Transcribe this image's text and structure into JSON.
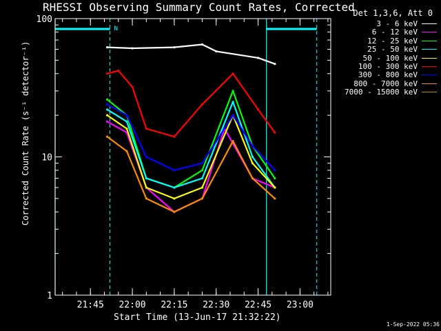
{
  "window": {
    "title": "RHESSI Observing Summary Count Rates, Corrected",
    "footer": "1-Sep-2022 05:36"
  },
  "chart_data": {
    "type": "line",
    "title": "RHESSI Observing Summary Count Rates, Corrected",
    "xlabel": "Start Time (13-Jun-17 21:32:22)",
    "ylabel": "Corrected Count Rate (s⁻¹ detector⁻¹)",
    "y_scale": "log",
    "ylim": [
      1,
      100
    ],
    "y_ticks": [
      "1",
      "10",
      "100"
    ],
    "x_range": [
      "21:32:22",
      "23:11"
    ],
    "x_ticks": [
      "21:45",
      "22:00",
      "22:15",
      "22:30",
      "22:45",
      "23:00"
    ],
    "legend_header": "Det 1,3,6, Att 0",
    "legend_position": "top-right",
    "series": [
      {
        "name": "3 - 6 keV",
        "color": "#ffffff",
        "x": [
          "21:51",
          "22:00",
          "22:15",
          "22:25",
          "22:30",
          "22:45",
          "22:51"
        ],
        "values": [
          62,
          61,
          62,
          65,
          58,
          52,
          47
        ]
      },
      {
        "name": "6 - 12 keV",
        "color": "#ff00ff",
        "x": [
          "21:51",
          "21:58",
          "22:05",
          "22:15",
          "22:25",
          "22:33",
          "22:43",
          "22:51"
        ],
        "values": [
          18,
          15,
          6,
          4,
          5,
          16,
          7,
          6
        ]
      },
      {
        "name": "12 - 25 keV",
        "color": "#00ff00",
        "x": [
          "21:51",
          "21:58",
          "22:05",
          "22:15",
          "22:25",
          "22:36",
          "22:43",
          "22:51"
        ],
        "values": [
          26,
          20,
          7,
          6,
          8,
          30,
          12,
          7
        ]
      },
      {
        "name": "25 - 50 keV",
        "color": "#00ffff",
        "x": [
          "21:51",
          "21:58",
          "22:05",
          "22:15",
          "22:25",
          "22:36",
          "22:43",
          "22:51"
        ],
        "values": [
          22,
          18,
          7,
          6,
          7,
          25,
          10,
          6
        ]
      },
      {
        "name": "50 - 100 keV",
        "color": "#ffff00",
        "x": [
          "21:51",
          "21:58",
          "22:05",
          "22:15",
          "22:25",
          "22:36",
          "22:43",
          "22:51"
        ],
        "values": [
          20,
          16,
          6,
          5,
          6,
          20,
          9,
          6
        ]
      },
      {
        "name": "100 - 300 keV",
        "color": "#ff0000",
        "x": [
          "21:51",
          "21:55",
          "22:00",
          "22:05",
          "22:15",
          "22:25",
          "22:36",
          "22:45",
          "22:51"
        ],
        "values": [
          40,
          42,
          32,
          16,
          14,
          24,
          40,
          22,
          15
        ]
      },
      {
        "name": "300 - 800 keV",
        "color": "#0000ff",
        "x": [
          "21:51",
          "21:58",
          "22:05",
          "22:15",
          "22:25",
          "22:36",
          "22:43",
          "22:51"
        ],
        "values": [
          24,
          20,
          10,
          8,
          9,
          20,
          12,
          8
        ]
      },
      {
        "name": "800 - 7000 keV",
        "color": "#ff8c00",
        "x": [
          "21:51",
          "21:58",
          "22:05",
          "22:15",
          "22:25",
          "22:36",
          "22:43",
          "22:51"
        ],
        "values": [
          14,
          11,
          5,
          4,
          5,
          13,
          7,
          5
        ]
      },
      {
        "name": "7000 - 15000 keV",
        "color": "#b8860b",
        "x": [],
        "values": []
      }
    ],
    "overlay": {
      "color": "#00ffff",
      "marker_label": "N",
      "solid_vertical_lines_at": [
        "21:32:22",
        "22:48"
      ],
      "dashed_vertical_lines_at": [
        "21:52",
        "23:06"
      ],
      "top_bars": [
        {
          "from": "21:32:22",
          "to": "21:52"
        },
        {
          "from": "22:48",
          "to": "23:06"
        }
      ]
    }
  }
}
